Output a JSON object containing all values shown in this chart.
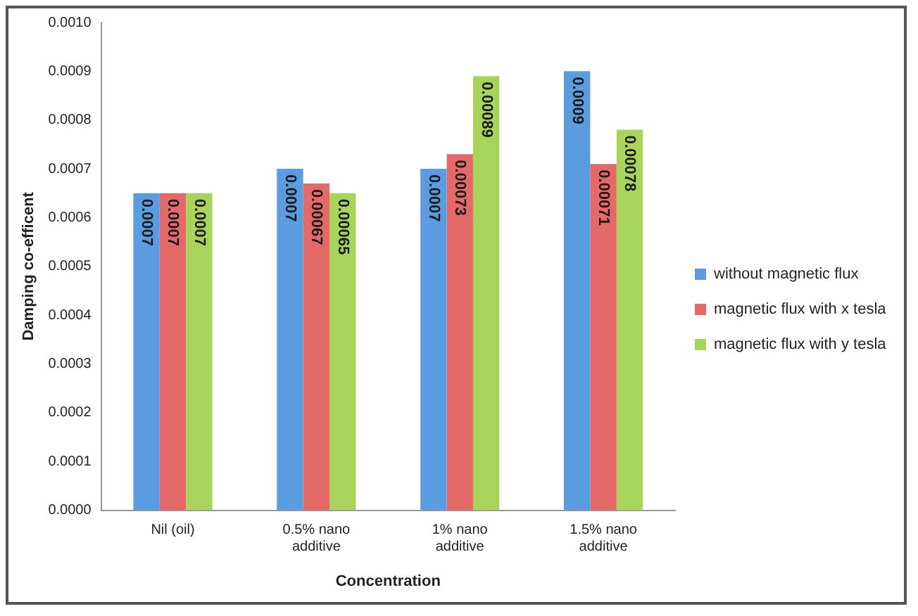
{
  "chart_data": {
    "type": "bar",
    "xlabel": "Concentration",
    "ylabel": "Damping co-efficent",
    "categories": [
      "Nil (oil)",
      "0.5% nano additive",
      "1% nano additive",
      "1.5% nano additive"
    ],
    "series": [
      {
        "name": "without magnetic flux",
        "color": "#5b9be0",
        "values": [
          0.00065,
          0.0007,
          0.0007,
          0.0009
        ],
        "value_labels": [
          "0.0007",
          "0.0007",
          "0.0007",
          "0.0009"
        ]
      },
      {
        "name": "magnetic flux with x tesla",
        "color": "#e46a6a",
        "values": [
          0.00065,
          0.00067,
          0.00073,
          0.00071
        ],
        "value_labels": [
          "0.0007",
          "0.00067",
          "0.00073",
          "0.00071"
        ]
      },
      {
        "name": "magnetic flux with y tesla",
        "color": "#a8d45c",
        "values": [
          0.00065,
          0.00065,
          0.00089,
          0.00078
        ],
        "value_labels": [
          "0.0007",
          "0.00065",
          "0.00089",
          "0.00078"
        ]
      }
    ],
    "ylim": [
      0,
      0.001
    ],
    "yticks": [
      {
        "value": 0,
        "label": "0.0000"
      },
      {
        "value": 0.0001,
        "label": "0.0001"
      },
      {
        "value": 0.0002,
        "label": "0.0002"
      },
      {
        "value": 0.0003,
        "label": "0.0003"
      },
      {
        "value": 0.0004,
        "label": "0.0004"
      },
      {
        "value": 0.0005,
        "label": "0.0005"
      },
      {
        "value": 0.0006,
        "label": "0.0006"
      },
      {
        "value": 0.0007,
        "label": "0.0007"
      },
      {
        "value": 0.0008,
        "label": "0.0008"
      },
      {
        "value": 0.0009,
        "label": "0.0009"
      },
      {
        "value": 0.001,
        "label": "0.0010"
      }
    ],
    "grid": false,
    "legend": "right"
  }
}
